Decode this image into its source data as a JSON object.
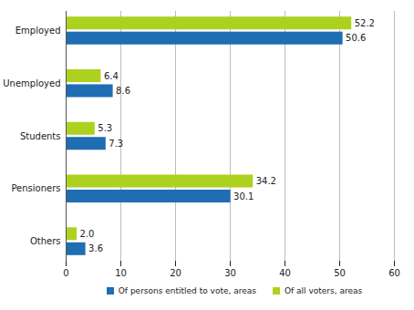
{
  "chart_data": {
    "type": "bar",
    "orientation": "horizontal",
    "categories": [
      "Employed",
      "Unemployed",
      "Students",
      "Pensioners",
      "Others"
    ],
    "series": [
      {
        "name": "Of persons entitled to vote, areas",
        "color": "#1f6db3",
        "values": [
          50.6,
          8.6,
          7.3,
          30.1,
          3.6
        ],
        "value_labels": [
          "50.6",
          "8.6",
          "7.3",
          "30.1",
          "3.6"
        ]
      },
      {
        "name": "Of all voters, areas",
        "color": "#add11f",
        "values": [
          52.2,
          6.4,
          5.3,
          34.2,
          2.0
        ],
        "value_labels": [
          "52.2",
          "6.4",
          "5.3",
          "34.2",
          "2.0"
        ]
      }
    ],
    "xlim": [
      0,
      60
    ],
    "xticks": [
      0,
      10,
      20,
      30,
      40,
      50,
      60
    ],
    "grid": true,
    "data_labels": true,
    "legend": "bottom"
  }
}
